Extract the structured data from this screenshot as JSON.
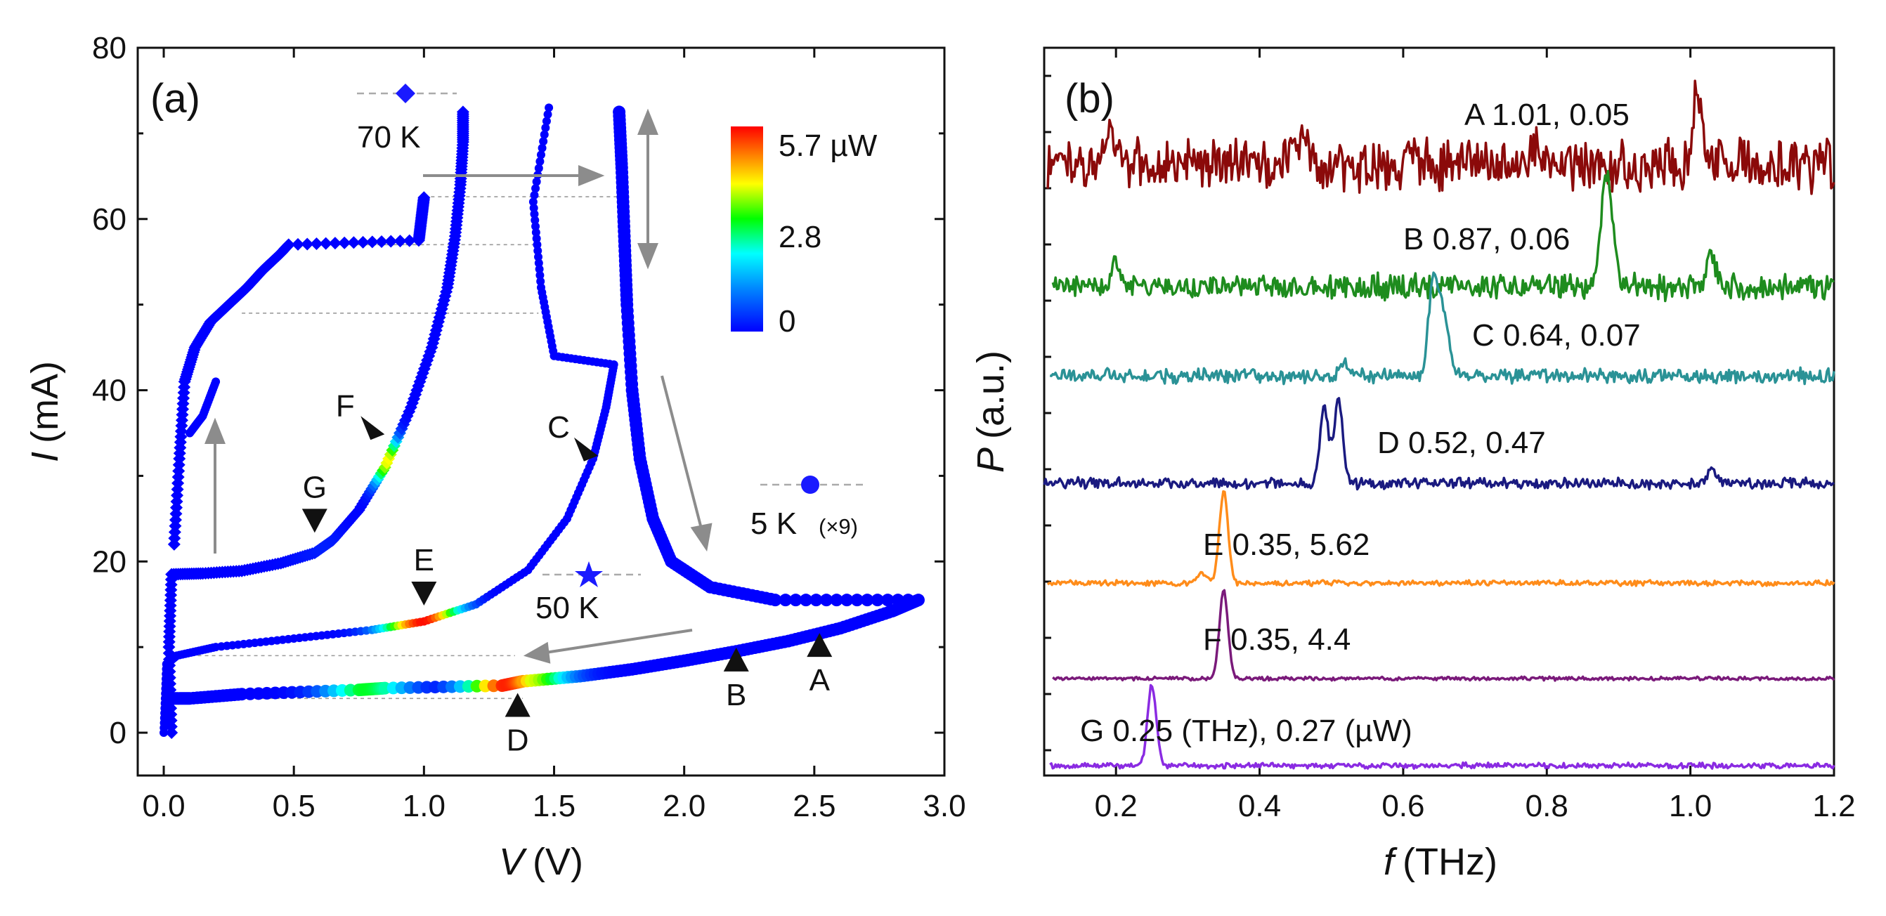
{
  "chart_data": [
    {
      "panel": "(a)",
      "type": "scatter",
      "xlabel_var": "V",
      "xlabel_unit": "(V)",
      "ylabel_var": "I",
      "ylabel_unit": "(mA)",
      "xlim": [
        -0.1,
        3.0
      ],
      "ylim": [
        -5,
        80
      ],
      "xticks": [
        0.0,
        0.5,
        1.0,
        1.5,
        2.0,
        2.5,
        3.0
      ],
      "xtick_labels": [
        "0.0",
        "0.5",
        "1.0",
        "1.5",
        "2.0",
        "2.5",
        "3.0"
      ],
      "yticks": [
        0,
        20,
        40,
        60,
        80
      ],
      "ytick_labels": [
        "0",
        "20",
        "40",
        "60",
        "80"
      ],
      "colorbar": {
        "labels": [
          "5.7 µW",
          "2.8",
          "0"
        ],
        "range_uW": [
          0,
          5.7
        ],
        "colors": [
          "#0000ff",
          "#0080ff",
          "#00ffff",
          "#00ff00",
          "#ffff00",
          "#ff8000",
          "#ff0000"
        ]
      },
      "series": [
        {
          "name": "70 K",
          "label": "70 K",
          "marker": "diamond",
          "color": "#1a1aff",
          "points": [
            [
              0.03,
              0
            ],
            [
              0.02,
              10
            ],
            [
              0.03,
              18.5
            ],
            [
              0.15,
              18.6
            ],
            [
              0.3,
              18.9
            ],
            [
              0.45,
              19.8
            ],
            [
              0.58,
              21
            ],
            [
              0.65,
              22.5
            ],
            [
              0.75,
              26
            ],
            [
              0.85,
              31
            ],
            [
              0.95,
              38
            ],
            [
              1.03,
              45
            ],
            [
              1.09,
              52
            ],
            [
              1.12,
              58
            ],
            [
              1.14,
              64
            ],
            [
              1.15,
              69
            ],
            [
              1.15,
              72.5
            ]
          ]
        },
        {
          "name": "70 K steps",
          "label": "",
          "marker": "diamond",
          "color": "#1a1aff",
          "points": [
            [
              0.04,
              22
            ],
            [
              0.06,
              32
            ],
            [
              0.08,
              41
            ],
            [
              0.12,
              45
            ],
            [
              0.18,
              48
            ],
            [
              0.25,
              50
            ],
            [
              0.32,
              52
            ],
            [
              0.38,
              54
            ],
            [
              0.45,
              56
            ],
            [
              0.48,
              57
            ],
            [
              0.98,
              57.5
            ],
            [
              0.99,
              60
            ],
            [
              1.0,
              62.5
            ]
          ]
        },
        {
          "name": "50 K",
          "label": "50 K",
          "marker": "star",
          "color": "#1a1aff",
          "points": [
            [
              0.0,
              0
            ],
            [
              0.01,
              8
            ],
            [
              0.05,
              9
            ],
            [
              0.2,
              10
            ],
            [
              0.5,
              11
            ],
            [
              0.8,
              12
            ],
            [
              1.0,
              13
            ],
            [
              1.2,
              15
            ],
            [
              1.4,
              19
            ],
            [
              1.55,
              25
            ],
            [
              1.65,
              32
            ],
            [
              1.7,
              38
            ],
            [
              1.73,
              43
            ],
            [
              1.5,
              44
            ],
            [
              1.45,
              52
            ],
            [
              1.42,
              62
            ],
            [
              1.48,
              73
            ]
          ]
        },
        {
          "name": "50 K low",
          "label": "",
          "marker": "star",
          "color": "#1a1aff",
          "points": [
            [
              0.2,
              41
            ],
            [
              0.15,
              37
            ],
            [
              0.1,
              35
            ]
          ]
        },
        {
          "name": "5 K (×9)",
          "label": "5 K",
          "sublabel": "(×9)",
          "marker": "circle",
          "color": "#1a1aff",
          "points": [
            [
              0.02,
              4
            ],
            [
              0.1,
              4
            ],
            [
              0.3,
              4.5
            ],
            [
              0.75,
              5
            ],
            [
              0.85,
              5.2
            ],
            [
              1.3,
              5.5
            ],
            [
              1.38,
              6
            ],
            [
              1.6,
              6.6
            ],
            [
              1.8,
              7.4
            ],
            [
              2.0,
              8.4
            ],
            [
              2.2,
              9.5
            ],
            [
              2.4,
              10.7
            ],
            [
              2.6,
              12.2
            ],
            [
              2.8,
              14.2
            ],
            [
              2.9,
              15.5
            ],
            [
              2.35,
              15.5
            ],
            [
              2.1,
              17
            ],
            [
              1.95,
              20
            ],
            [
              1.88,
              25
            ],
            [
              1.83,
              32
            ],
            [
              1.8,
              40
            ],
            [
              1.78,
              50
            ],
            [
              1.77,
              58
            ],
            [
              1.76,
              66
            ],
            [
              1.75,
              72.5
            ]
          ]
        }
      ],
      "markers": [
        {
          "label": "A",
          "x": 2.52,
          "y": 10,
          "dir": "up"
        },
        {
          "label": "B",
          "x": 2.2,
          "y": 8.3,
          "dir": "up"
        },
        {
          "label": "C",
          "x": 1.62,
          "y": 33.5,
          "dir": "right"
        },
        {
          "label": "D",
          "x": 1.36,
          "y": 3,
          "dir": "up"
        },
        {
          "label": "E",
          "x": 1.0,
          "y": 16.5,
          "dir": "down"
        },
        {
          "label": "F",
          "x": 0.8,
          "y": 36,
          "dir": "right"
        },
        {
          "label": "G",
          "x": 0.58,
          "y": 25,
          "dir": "down"
        }
      ]
    },
    {
      "panel": "(b)",
      "type": "line",
      "xlabel_var": "f",
      "xlabel_unit": "(THz)",
      "ylabel_var": "P",
      "ylabel_unit": "(a.u.)",
      "xlim": [
        0.1,
        1.2
      ],
      "xticks": [
        0.2,
        0.4,
        0.6,
        0.8,
        1.0,
        1.2
      ],
      "xtick_labels": [
        "0.2",
        "0.4",
        "0.6",
        "0.8",
        "1.0",
        "1.2"
      ],
      "series": [
        {
          "name": "A",
          "label": "A 1.01, 0.05",
          "color": "#8b0a0a",
          "peaks": [
            [
              1.01,
              1.0
            ],
            [
              0.19,
              0.5
            ],
            [
              0.46,
              0.4
            ],
            [
              0.78,
              0.3
            ]
          ]
        },
        {
          "name": "B",
          "label": "B 0.87, 0.06",
          "color": "#1e8c1e",
          "peaks": [
            [
              0.88,
              1.0
            ],
            [
              0.89,
              0.7
            ],
            [
              1.03,
              0.35
            ],
            [
              0.2,
              0.25
            ]
          ]
        },
        {
          "name": "C",
          "label": "C 0.64, 0.07",
          "color": "#2a9296",
          "peaks": [
            [
              0.64,
              1.0
            ],
            [
              0.65,
              0.75
            ],
            [
              0.66,
              0.5
            ],
            [
              0.52,
              0.15
            ]
          ]
        },
        {
          "name": "D",
          "label": "D 0.52, 0.47",
          "color": "#1a1a80",
          "peaks": [
            [
              0.49,
              0.9
            ],
            [
              0.51,
              1.0
            ],
            [
              1.03,
              0.15
            ]
          ]
        },
        {
          "name": "E",
          "label": "E 0.35, 5.62",
          "color": "#ff8c1a",
          "peaks": [
            [
              0.35,
              1.0
            ],
            [
              0.32,
              0.1
            ]
          ]
        },
        {
          "name": "F",
          "label": "F 0.35, 4.4",
          "color": "#7a1a7a",
          "peaks": [
            [
              0.35,
              1.0
            ]
          ]
        },
        {
          "name": "G",
          "label": "G 0.25 (THz), 0.27 (µW)",
          "color": "#8a2be2",
          "peaks": [
            [
              0.25,
              1.0
            ]
          ]
        }
      ]
    }
  ]
}
